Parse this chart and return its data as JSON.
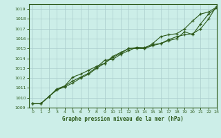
{
  "title": "Graphe pression niveau de la mer (hPa)",
  "bg_color": "#cceee8",
  "line_color": "#2d5a1b",
  "grid_color": "#aacccc",
  "xlim": [
    -0.5,
    23
  ],
  "ylim": [
    1009,
    1019.5
  ],
  "yticks": [
    1009,
    1010,
    1011,
    1012,
    1013,
    1014,
    1015,
    1016,
    1017,
    1018,
    1019
  ],
  "xticks": [
    0,
    1,
    2,
    3,
    4,
    5,
    6,
    7,
    8,
    9,
    10,
    11,
    12,
    13,
    14,
    15,
    16,
    17,
    18,
    19,
    20,
    21,
    22,
    23
  ],
  "series1": [
    1009.4,
    1009.4,
    1010.1,
    1010.8,
    1011.1,
    1011.5,
    1012.0,
    1012.4,
    1013.0,
    1013.5,
    1014.1,
    1014.5,
    1015.0,
    1015.1,
    1015.0,
    1015.3,
    1015.5,
    1015.8,
    1016.0,
    1016.7,
    1016.4,
    1017.5,
    1018.5,
    1019.1
  ],
  "series2": [
    1009.4,
    1009.4,
    1010.1,
    1010.8,
    1011.2,
    1011.7,
    1012.1,
    1012.5,
    1013.1,
    1013.8,
    1013.9,
    1014.4,
    1014.8,
    1015.1,
    1015.1,
    1015.4,
    1015.5,
    1015.9,
    1016.2,
    1016.4,
    1016.5,
    1017.0,
    1018.0,
    1019.3
  ],
  "series3": [
    1009.4,
    1009.4,
    1010.1,
    1010.9,
    1011.2,
    1012.1,
    1012.4,
    1012.8,
    1013.2,
    1013.5,
    1014.2,
    1014.6,
    1015.0,
    1015.0,
    1015.0,
    1015.5,
    1016.2,
    1016.4,
    1016.5,
    1017.0,
    1017.8,
    1018.5,
    1018.7,
    1019.2
  ]
}
